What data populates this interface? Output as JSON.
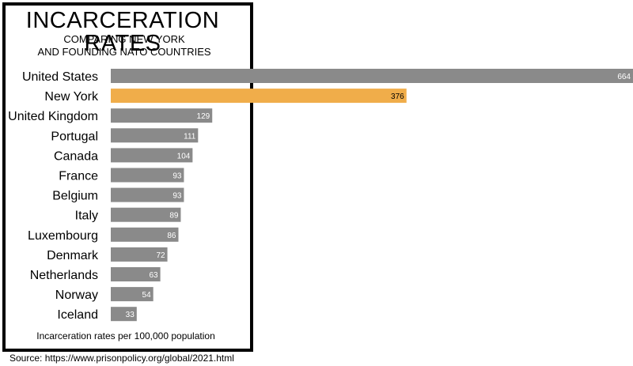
{
  "title": "INCARCERATION RATES",
  "subtitle_line1": "COMPARING NEW YORK",
  "subtitle_line2": "AND FOUNDING NATO COUNTRIES",
  "footnote": "Incarceration rates per 100,000 population",
  "source": "Source: https://www.prisonpolicy.org/global/2021.html",
  "colors": {
    "default_bar": "#8a8a8a",
    "highlight_bar": "#f0ad4a"
  },
  "chart_data": {
    "type": "bar",
    "orientation": "horizontal",
    "categories": [
      "United States",
      "New York",
      "United Kingdom",
      "Portugal",
      "Canada",
      "France",
      "Belgium",
      "Italy",
      "Luxembourg",
      "Denmark",
      "Netherlands",
      "Norway",
      "Iceland"
    ],
    "values": [
      664,
      376,
      129,
      111,
      104,
      93,
      93,
      89,
      86,
      72,
      63,
      54,
      33
    ],
    "highlight": "New York",
    "xlim": [
      0,
      664
    ],
    "grid": false,
    "legend": false
  }
}
